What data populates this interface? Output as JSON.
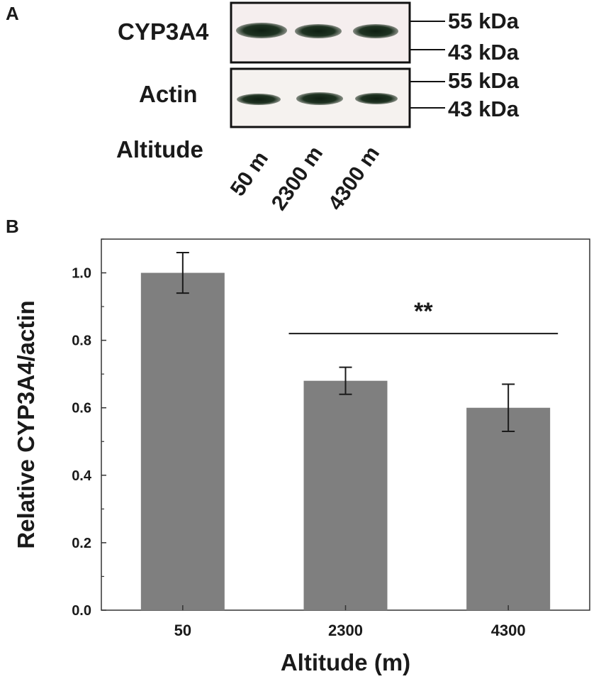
{
  "panel_a": {
    "panel_label": "A",
    "blots": [
      {
        "label": "CYP3A4",
        "marker_top": "55 kDa",
        "marker_bottom": "43 kDa"
      },
      {
        "label": "Actin",
        "marker_top": "55 kDa",
        "marker_bottom": "43 kDa"
      }
    ],
    "lane_axis_label": "Altitude",
    "lanes": [
      "50 m",
      "2300 m",
      "4300 m"
    ]
  },
  "panel_b": {
    "panel_label": "B"
  },
  "chart_data": {
    "type": "bar",
    "categories": [
      "50",
      "2300",
      "4300"
    ],
    "values": [
      1.0,
      0.68,
      0.6
    ],
    "error": [
      0.06,
      0.04,
      0.07
    ],
    "xlabel": "Altitude (m)",
    "ylabel": "Relative CYP3A4/actin",
    "ylim": [
      0,
      1.1
    ],
    "yticks": [
      "0.0",
      "0.2",
      "0.4",
      "0.6",
      "0.8",
      "1.0"
    ],
    "ytick_values": [
      0,
      0.2,
      0.4,
      0.6,
      0.8,
      1.0
    ],
    "annotation": {
      "text": "**",
      "from_category": "2300",
      "to_category": "4300",
      "line_value": 0.82
    },
    "grid": false,
    "colors": {
      "bar": "#7f7f7f",
      "axis": "#333333",
      "text": "#1a1a1a"
    }
  }
}
